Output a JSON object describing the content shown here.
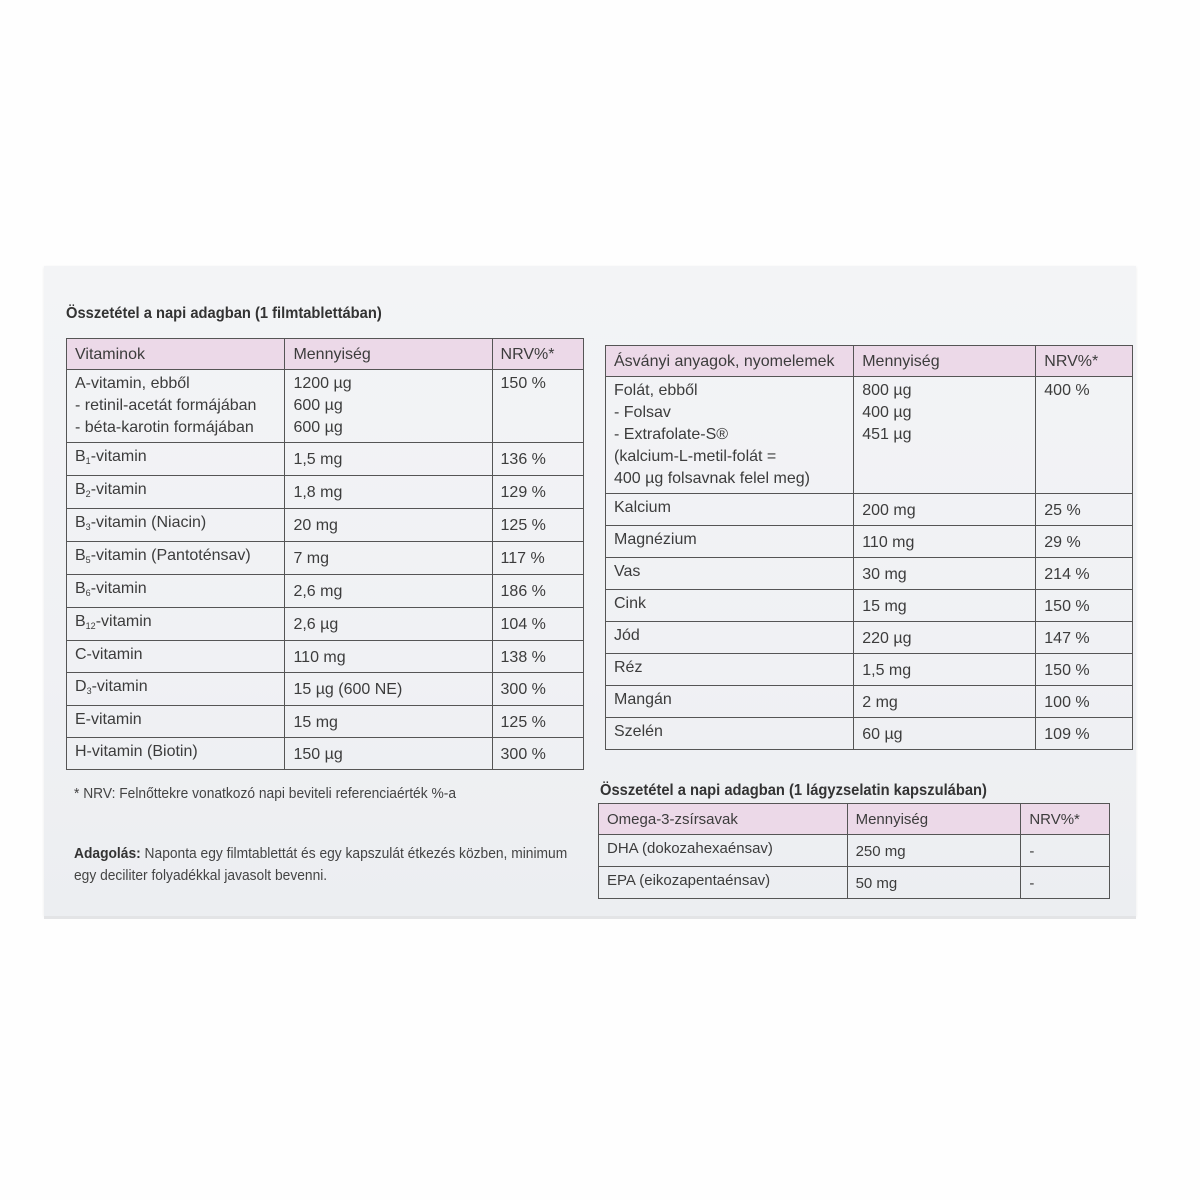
{
  "tablet_section": {
    "title": "Összetétel a napi adagban (1 filmtablettában)",
    "vitamins": {
      "headers": [
        "Vitaminok",
        "Mennyiség",
        "NRV%*"
      ],
      "rows": [
        {
          "name": [
            "A-vitamin, ebből",
            "- retinil-acetát formájában",
            "- béta-karotin formájában"
          ],
          "amount": [
            "1200 µg",
            "600 µg",
            "600 µg"
          ],
          "nrv": "150 %"
        },
        {
          "pre": "B",
          "sub": "1",
          "post": "-vitamin",
          "amount": [
            "1,5 mg"
          ],
          "nrv": "136 %"
        },
        {
          "pre": "B",
          "sub": "2",
          "post": "-vitamin",
          "amount": [
            "1,8 mg"
          ],
          "nrv": "129 %"
        },
        {
          "pre": "B",
          "sub": "3",
          "post": "-vitamin (Niacin)",
          "amount": [
            "20 mg"
          ],
          "nrv": "125 %"
        },
        {
          "pre": "B",
          "sub": "5",
          "post": "-vitamin (Pantoténsav)",
          "amount": [
            "7 mg"
          ],
          "nrv": "117 %"
        },
        {
          "pre": "B",
          "sub": "6",
          "post": "-vitamin",
          "amount": [
            "2,6 mg"
          ],
          "nrv": "186 %"
        },
        {
          "pre": "B",
          "sub": "12",
          "post": "-vitamin",
          "amount": [
            "2,6 µg"
          ],
          "nrv": "104 %"
        },
        {
          "pre": "C-vitamin",
          "sub": "",
          "post": "",
          "amount": [
            "110 mg"
          ],
          "nrv": "138 %"
        },
        {
          "pre": "D",
          "sub": "3",
          "post": "-vitamin",
          "amount": [
            "15 µg (600 NE)"
          ],
          "nrv": "300 %"
        },
        {
          "pre": "E-vitamin",
          "sub": "",
          "post": "",
          "amount": [
            "15 mg"
          ],
          "nrv": "125 %"
        },
        {
          "pre": "H-vitamin (Biotin)",
          "sub": "",
          "post": "",
          "amount": [
            "150 µg"
          ],
          "nrv": "300 %"
        }
      ]
    },
    "minerals": {
      "headers": [
        "Ásványi anyagok, nyomelemek",
        "Mennyiség",
        "NRV%*"
      ],
      "rows": [
        {
          "name": [
            "Folát, ebből",
            "- Folsav",
            "- Extrafolate-S®",
            "(kalcium-L-metil-folát =",
            "400 µg folsavnak felel meg)"
          ],
          "amount": [
            "800 µg",
            "400 µg",
            "451 µg"
          ],
          "nrv": "400 %"
        },
        {
          "pre": "Kalcium",
          "sub": "",
          "post": "",
          "amount": [
            "200 mg"
          ],
          "nrv": "25 %"
        },
        {
          "pre": "Magnézium",
          "sub": "",
          "post": "",
          "amount": [
            "110 mg"
          ],
          "nrv": "29 %"
        },
        {
          "pre": "Vas",
          "sub": "",
          "post": "",
          "amount": [
            "30 mg"
          ],
          "nrv": "214 %"
        },
        {
          "pre": "Cink",
          "sub": "",
          "post": "",
          "amount": [
            "15 mg"
          ],
          "nrv": "150 %"
        },
        {
          "pre": "Jód",
          "sub": "",
          "post": "",
          "amount": [
            "220 µg"
          ],
          "nrv": "147 %"
        },
        {
          "pre": "Réz",
          "sub": "",
          "post": "",
          "amount": [
            "1,5 mg"
          ],
          "nrv": "150 %"
        },
        {
          "pre": "Mangán",
          "sub": "",
          "post": "",
          "amount": [
            "2 mg"
          ],
          "nrv": "100 %"
        },
        {
          "pre": "Szelén",
          "sub": "",
          "post": "",
          "amount": [
            "60 µg"
          ],
          "nrv": "109 %"
        }
      ]
    },
    "footnote": "* NRV: Felnőttekre vonatkozó napi beviteli referenciaérték %-a",
    "dosage_label": "Adagolás:",
    "dosage_text": " Naponta egy filmtablettát és egy kapszulát étkezés közben, minimum egy deciliter folyadékkal javasolt bevenni."
  },
  "capsule_section": {
    "title": "Összetétel a napi adagban (1 lágyzselatin kapszulában)",
    "omega": {
      "headers": [
        "Omega-3-zsírsavak",
        "Mennyiség",
        "NRV%*"
      ],
      "rows": [
        {
          "pre": "DHA (dokozahexaénsav)",
          "sub": "",
          "post": "",
          "amount": [
            "250 mg"
          ],
          "nrv": "-"
        },
        {
          "pre": "EPA (eikozapentaénsav)",
          "sub": "",
          "post": "",
          "amount": [
            "50 mg"
          ],
          "nrv": "-"
        }
      ]
    }
  },
  "colors": {
    "header_bg": "#ecd9e8",
    "box_bg": "#f1f2f5"
  }
}
